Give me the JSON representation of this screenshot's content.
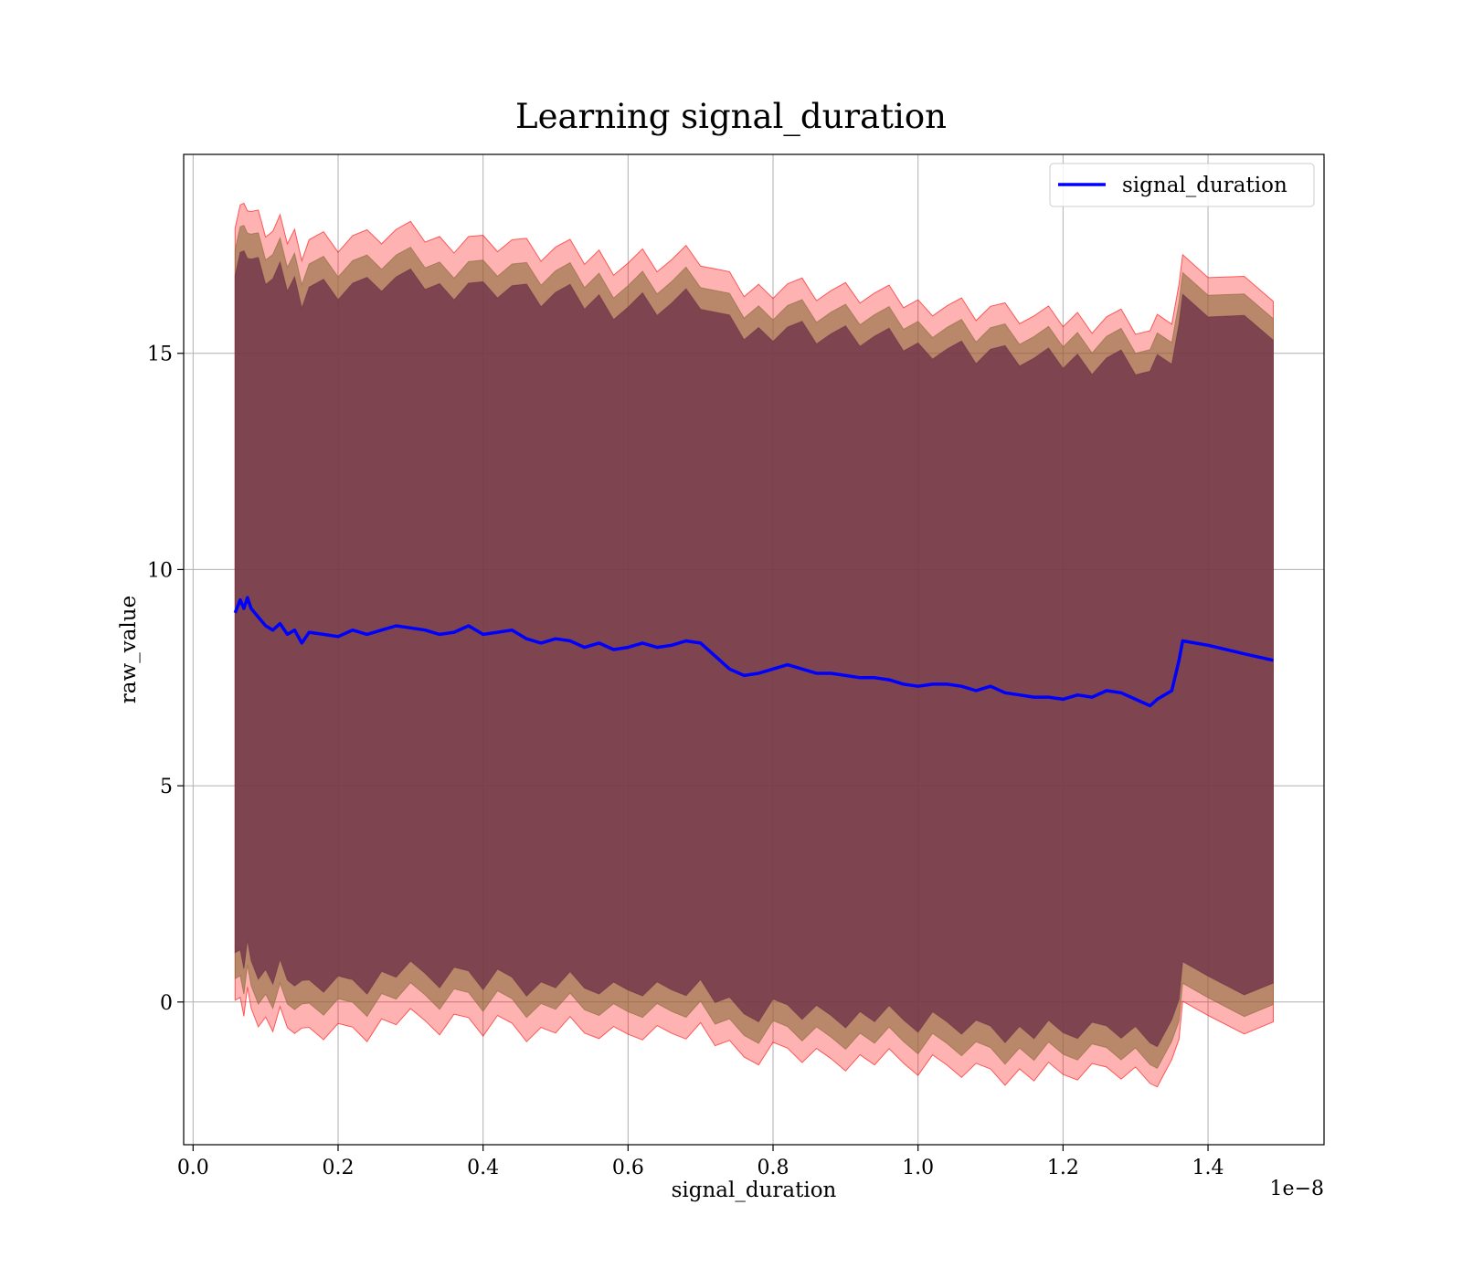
{
  "chart_data": {
    "type": "line",
    "title": "Learning signal_duration",
    "xlabel": "signal_duration",
    "ylabel": "raw_value",
    "x_offset_label": "1e−8",
    "xlim": [
      -0.013,
      1.56
    ],
    "ylim": [
      -3.3,
      19.6
    ],
    "x_ticks": [
      0.0,
      0.2,
      0.4,
      0.6,
      0.8,
      1.0,
      1.2,
      1.4
    ],
    "y_ticks": [
      0,
      5,
      10,
      15
    ],
    "x_tick_labels": [
      "0.0",
      "0.2",
      "0.4",
      "0.6",
      "0.8",
      "1.0",
      "1.2",
      "1.4"
    ],
    "y_tick_labels": [
      "0",
      "5",
      "10",
      "15"
    ],
    "grid": true,
    "legend": {
      "placement": "top-right",
      "entries": [
        "signal_duration"
      ]
    },
    "colors": {
      "line": "#0000ff",
      "band_outer": "#ff0000",
      "band_mid": "#8b6a3a",
      "band_inner": "#6b2f48"
    },
    "series": [
      {
        "name": "signal_duration",
        "x": [
          0.058,
          0.065,
          0.07,
          0.075,
          0.08,
          0.09,
          0.1,
          0.11,
          0.12,
          0.13,
          0.14,
          0.15,
          0.16,
          0.18,
          0.2,
          0.22,
          0.24,
          0.26,
          0.28,
          0.3,
          0.32,
          0.34,
          0.36,
          0.38,
          0.4,
          0.42,
          0.44,
          0.46,
          0.48,
          0.5,
          0.52,
          0.54,
          0.56,
          0.58,
          0.6,
          0.62,
          0.64,
          0.66,
          0.68,
          0.7,
          0.72,
          0.74,
          0.76,
          0.78,
          0.8,
          0.82,
          0.84,
          0.86,
          0.88,
          0.9,
          0.92,
          0.94,
          0.96,
          0.98,
          1.0,
          1.02,
          1.04,
          1.06,
          1.08,
          1.1,
          1.12,
          1.14,
          1.16,
          1.18,
          1.2,
          1.22,
          1.24,
          1.26,
          1.28,
          1.3,
          1.32,
          1.33,
          1.35,
          1.36,
          1.365,
          1.4,
          1.45,
          1.49
        ],
        "y": [
          9.0,
          9.3,
          9.1,
          9.35,
          9.1,
          8.9,
          8.7,
          8.6,
          8.75,
          8.5,
          8.6,
          8.3,
          8.55,
          8.5,
          8.45,
          8.6,
          8.5,
          8.6,
          8.7,
          8.65,
          8.6,
          8.5,
          8.55,
          8.7,
          8.5,
          8.55,
          8.6,
          8.4,
          8.3,
          8.4,
          8.35,
          8.2,
          8.3,
          8.15,
          8.2,
          8.3,
          8.2,
          8.25,
          8.35,
          8.3,
          8.0,
          7.7,
          7.55,
          7.6,
          7.7,
          7.8,
          7.7,
          7.6,
          7.6,
          7.55,
          7.5,
          7.5,
          7.45,
          7.35,
          7.3,
          7.35,
          7.35,
          7.3,
          7.2,
          7.3,
          7.15,
          7.1,
          7.05,
          7.05,
          7.0,
          7.1,
          7.05,
          7.2,
          7.15,
          7.0,
          6.85,
          7.0,
          7.2,
          7.9,
          8.35,
          8.25,
          8.05,
          7.9
        ],
        "band_inner": [
          8.1,
          8.0,
          7.9,
          7.8,
          7.7
        ],
        "band_mid": [
          8.7,
          8.5,
          8.4,
          8.3,
          8.2
        ],
        "band_outer": [
          9.2,
          9.1,
          8.9,
          8.8,
          8.6
        ]
      }
    ]
  }
}
